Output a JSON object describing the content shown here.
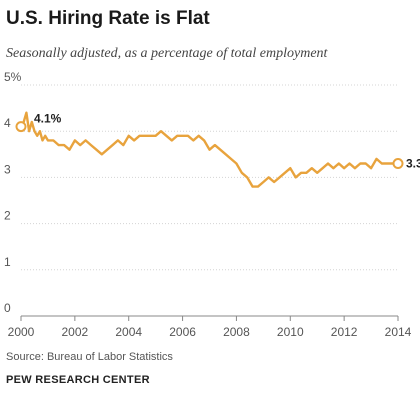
{
  "chart_data": {
    "type": "line",
    "title": "U.S. Hiring Rate is Flat",
    "subtitle": "Seasonally adjusted, as a percentage of total employment",
    "xlabel": "",
    "ylabel": "",
    "xlim": [
      2000,
      2014
    ],
    "ylim": [
      0,
      5
    ],
    "x_ticks": [
      "2000",
      "2002",
      "2004",
      "2006",
      "2008",
      "2010",
      "2012",
      "2014"
    ],
    "y_ticks": [
      "0",
      "1",
      "2",
      "3",
      "4",
      "5%"
    ],
    "grid": true,
    "color": "#E8A33D",
    "series": [
      {
        "x": [
          2000.0,
          2000.1,
          2000.2,
          2000.3,
          2000.4,
          2000.5,
          2000.6,
          2000.7,
          2000.8,
          2000.9,
          2001.0,
          2001.2,
          2001.4,
          2001.6,
          2001.8,
          2002.0,
          2002.2,
          2002.4,
          2002.6,
          2002.8,
          2003.0,
          2003.2,
          2003.4,
          2003.6,
          2003.8,
          2004.0,
          2004.2,
          2004.4,
          2004.6,
          2004.8,
          2005.0,
          2005.2,
          2005.4,
          2005.6,
          2005.8,
          2006.0,
          2006.2,
          2006.4,
          2006.6,
          2006.8,
          2007.0,
          2007.2,
          2007.4,
          2007.6,
          2007.8,
          2008.0,
          2008.2,
          2008.4,
          2008.6,
          2008.8,
          2009.0,
          2009.2,
          2009.4,
          2009.6,
          2009.8,
          2010.0,
          2010.2,
          2010.4,
          2010.6,
          2010.8,
          2011.0,
          2011.2,
          2011.4,
          2011.6,
          2011.8,
          2012.0,
          2012.2,
          2012.4,
          2012.6,
          2012.8,
          2013.0,
          2013.2,
          2013.4,
          2013.6,
          2013.8,
          2014.0
        ],
        "y": [
          4.1,
          4.2,
          4.4,
          4.0,
          4.2,
          4.0,
          3.9,
          4.0,
          3.8,
          3.9,
          3.8,
          3.8,
          3.7,
          3.7,
          3.6,
          3.8,
          3.7,
          3.8,
          3.7,
          3.6,
          3.5,
          3.6,
          3.7,
          3.8,
          3.7,
          3.9,
          3.8,
          3.9,
          3.9,
          3.9,
          3.9,
          4.0,
          3.9,
          3.8,
          3.9,
          3.9,
          3.9,
          3.8,
          3.9,
          3.8,
          3.6,
          3.7,
          3.6,
          3.5,
          3.4,
          3.3,
          3.1,
          3.0,
          2.8,
          2.8,
          2.9,
          3.0,
          2.9,
          3.0,
          3.1,
          3.2,
          3.0,
          3.1,
          3.1,
          3.2,
          3.1,
          3.2,
          3.3,
          3.2,
          3.3,
          3.2,
          3.3,
          3.2,
          3.3,
          3.3,
          3.2,
          3.4,
          3.3,
          3.3,
          3.3,
          3.3
        ]
      }
    ],
    "annotations": [
      {
        "x": 2000.0,
        "y": 4.1,
        "text": "4.1%"
      },
      {
        "x": 2014.0,
        "y": 3.3,
        "text": "3.3"
      }
    ]
  },
  "footer": {
    "source": "Source: Bureau of Labor Statistics",
    "organization": "PEW RESEARCH CENTER"
  }
}
